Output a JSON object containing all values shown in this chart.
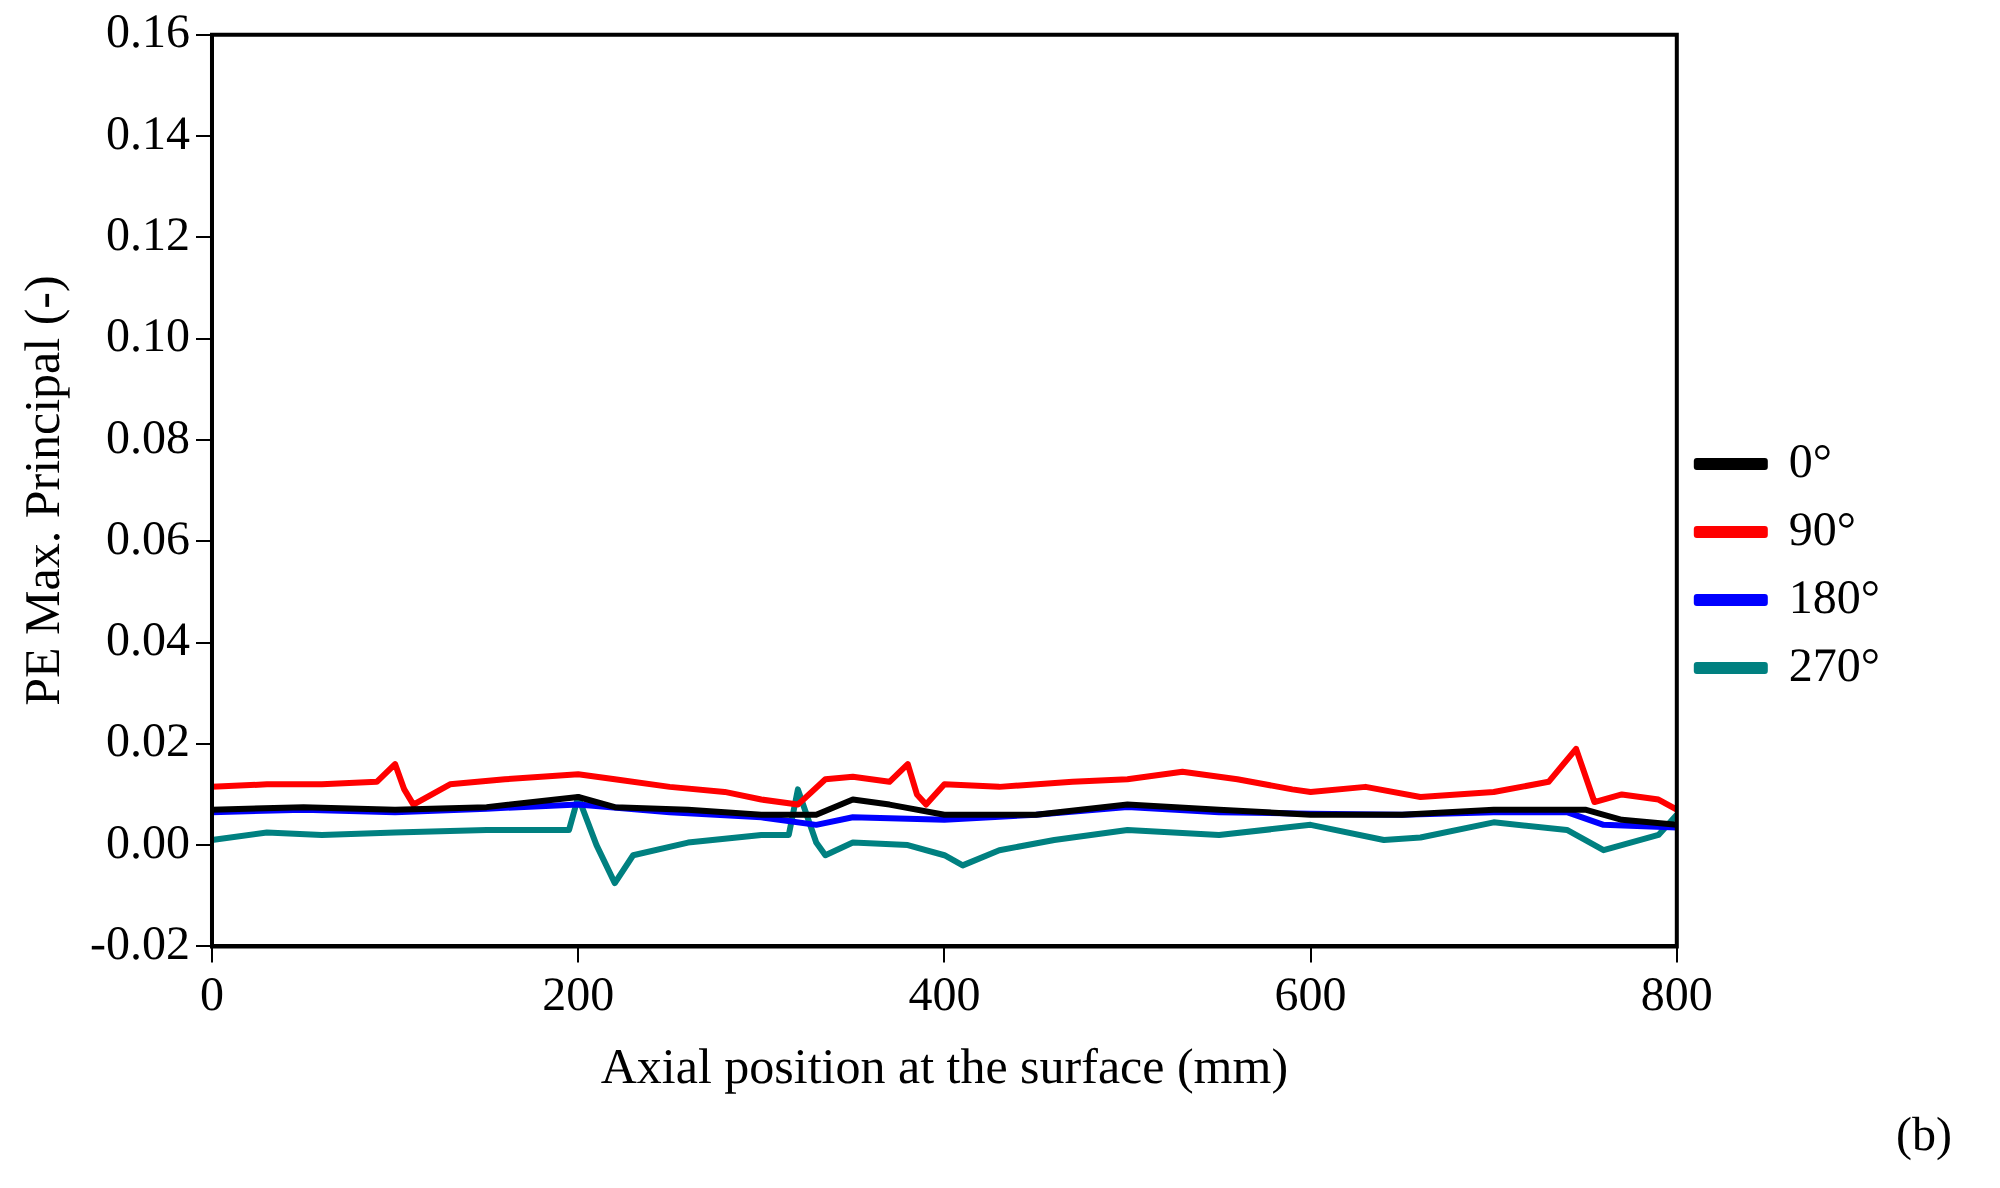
{
  "chart_data": {
    "type": "line",
    "xlabel": "Axial position at the surface (mm)",
    "ylabel": "PE Max. Principal (-)",
    "xlim": [
      0,
      800
    ],
    "xticks": [
      0,
      200,
      400,
      600,
      800
    ],
    "ylim": [
      -0.02,
      0.16
    ],
    "yticks": [
      {
        "value": -0.02,
        "label": "-0.02"
      },
      {
        "value": 0,
        "label": "0.00"
      },
      {
        "value": 0.02,
        "label": "0.02"
      },
      {
        "value": 0.04,
        "label": "0.04"
      },
      {
        "value": 0.06,
        "label": "0.06"
      },
      {
        "value": 0.08,
        "label": "0.08"
      },
      {
        "value": 0.1,
        "label": "0.10"
      },
      {
        "value": 0.12,
        "label": "0.12"
      },
      {
        "value": 0.14,
        "label": "0.14"
      },
      {
        "value": 0.16,
        "label": "0.16"
      }
    ],
    "grid": false,
    "legend": "right",
    "marker": "none",
    "line_style": "solid",
    "annotations": [
      "(b)"
    ],
    "series": [
      {
        "name": "0°",
        "color": "#000000",
        "x": [
          0,
          50,
          100,
          150,
          200,
          220,
          260,
          300,
          330,
          350,
          370,
          400,
          450,
          500,
          550,
          600,
          650,
          700,
          750,
          770,
          800
        ],
        "values": [
          0.007,
          0.0075,
          0.007,
          0.0075,
          0.0095,
          0.0075,
          0.007,
          0.006,
          0.006,
          0.009,
          0.008,
          0.006,
          0.006,
          0.008,
          0.007,
          0.006,
          0.006,
          0.007,
          0.007,
          0.005,
          0.004
        ]
      },
      {
        "name": "90°",
        "color": "#ff0000",
        "x": [
          0,
          30,
          60,
          90,
          100,
          105,
          110,
          130,
          160,
          200,
          220,
          250,
          280,
          300,
          320,
          335,
          350,
          370,
          380,
          385,
          390,
          400,
          430,
          470,
          500,
          530,
          560,
          590,
          600,
          630,
          660,
          700,
          730,
          745,
          755,
          770,
          790,
          800
        ],
        "values": [
          0.0115,
          0.012,
          0.012,
          0.0125,
          0.016,
          0.011,
          0.008,
          0.012,
          0.013,
          0.014,
          0.013,
          0.0115,
          0.0105,
          0.009,
          0.008,
          0.013,
          0.0135,
          0.0125,
          0.016,
          0.01,
          0.008,
          0.012,
          0.0115,
          0.0125,
          0.013,
          0.0145,
          0.013,
          0.011,
          0.0105,
          0.0115,
          0.0095,
          0.0105,
          0.0125,
          0.019,
          0.0085,
          0.01,
          0.009,
          0.007
        ]
      },
      {
        "name": "180°",
        "color": "#0000ff",
        "x": [
          0,
          50,
          100,
          150,
          200,
          250,
          300,
          330,
          350,
          400,
          450,
          500,
          550,
          600,
          650,
          700,
          740,
          760,
          800
        ],
        "values": [
          0.0065,
          0.007,
          0.0065,
          0.0072,
          0.008,
          0.0065,
          0.0055,
          0.004,
          0.0055,
          0.005,
          0.006,
          0.0075,
          0.0065,
          0.0062,
          0.006,
          0.0065,
          0.0065,
          0.004,
          0.0035
        ]
      },
      {
        "name": "270°",
        "color": "#008080",
        "x": [
          0,
          30,
          60,
          100,
          150,
          195,
          200,
          210,
          220,
          230,
          260,
          300,
          315,
          320,
          330,
          335,
          350,
          380,
          400,
          410,
          430,
          460,
          500,
          550,
          600,
          640,
          660,
          700,
          740,
          760,
          790,
          800
        ],
        "values": [
          0.001,
          0.0025,
          0.002,
          0.0025,
          0.003,
          0.003,
          0.0095,
          0.0,
          -0.0075,
          -0.002,
          0.0005,
          0.002,
          0.002,
          0.011,
          0.0005,
          -0.002,
          0.0005,
          0.0,
          -0.002,
          -0.004,
          -0.001,
          0.001,
          0.003,
          0.002,
          0.004,
          0.001,
          0.0015,
          0.0045,
          0.003,
          -0.001,
          0.002,
          0.006
        ]
      }
    ]
  }
}
